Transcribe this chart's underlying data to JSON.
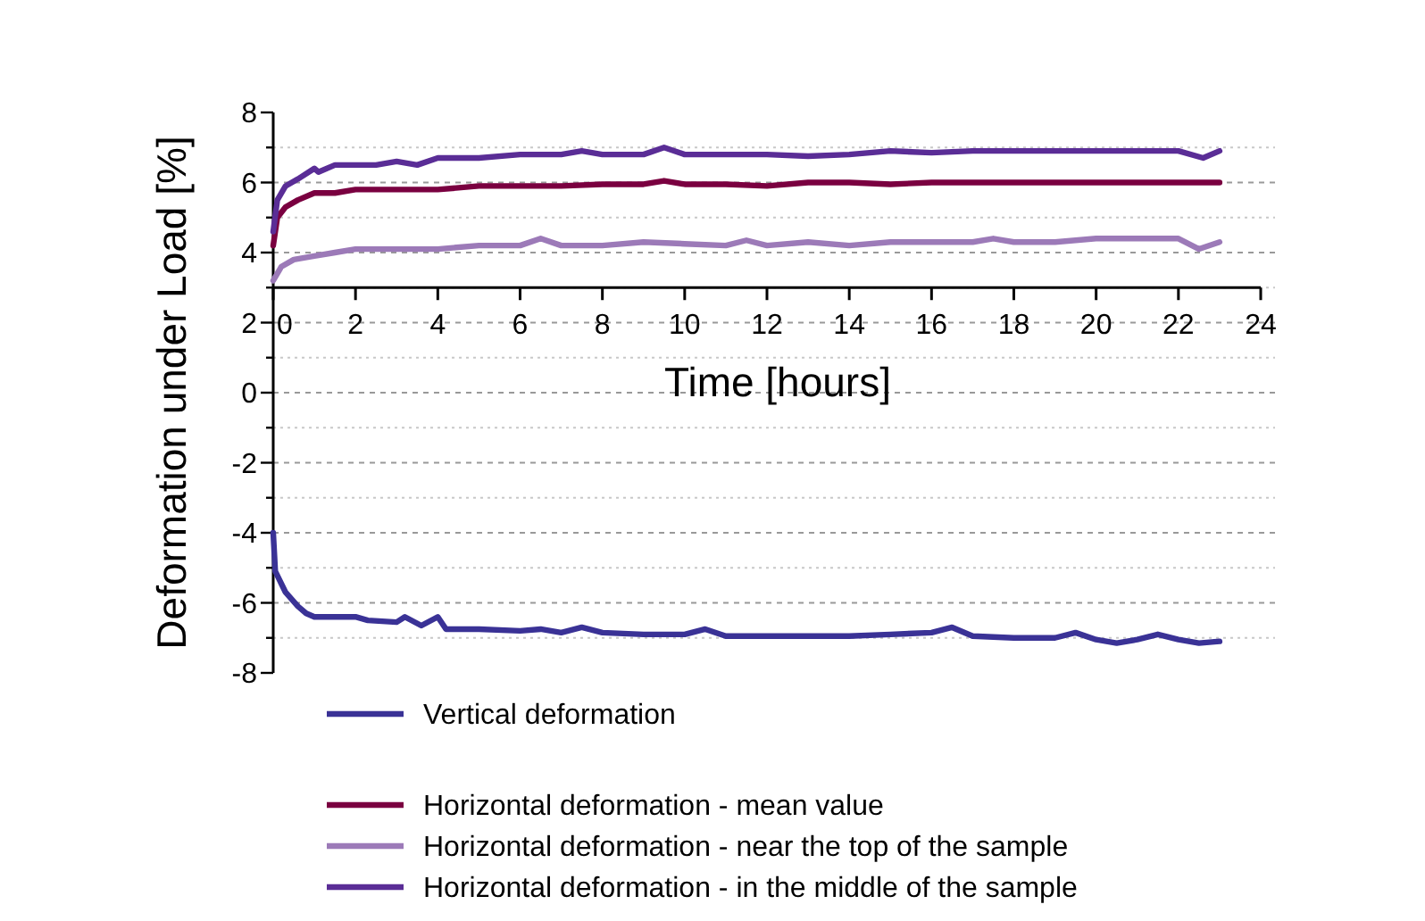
{
  "chart_data": {
    "type": "line",
    "xlabel": "Time [hours]",
    "ylabel": "Deformation under Load [%]",
    "xlim": [
      0,
      24
    ],
    "xticks": [
      0,
      2,
      4,
      6,
      8,
      10,
      12,
      14,
      16,
      18,
      20,
      22,
      24
    ],
    "ylim": [
      -8,
      8
    ],
    "yticks": [
      -8,
      {
        "value": -7,
        "label": null
      },
      -6,
      {
        "value": -5,
        "label": null
      },
      -4,
      {
        "value": -3,
        "label": null
      },
      -2,
      {
        "value": -1,
        "label": null
      },
      0,
      {
        "value": 1,
        "label": null
      },
      2,
      {
        "value": 3,
        "label": null
      },
      4,
      {
        "value": 5,
        "label": null
      },
      6,
      {
        "value": 7,
        "label": null
      },
      8
    ],
    "grid": "y",
    "legend": "bottom",
    "marker": "none",
    "line_style": "solid",
    "series": [
      {
        "name": "Vertical deformation",
        "color": "#3a3296",
        "x": [
          0,
          0.05,
          0.3,
          0.6,
          0.8,
          1,
          1.5,
          2,
          2.3,
          3,
          3.2,
          3.6,
          4,
          4.2,
          5,
          6,
          6.5,
          7,
          7.5,
          8,
          9,
          10,
          10.5,
          11,
          12,
          14,
          15,
          16,
          16.5,
          17,
          18,
          19,
          19.5,
          20,
          20.5,
          21,
          21.5,
          22,
          22.5,
          23
        ],
        "values": [
          -4.0,
          -5.1,
          -5.7,
          -6.1,
          -6.3,
          -6.4,
          -6.4,
          -6.4,
          -6.5,
          -6.55,
          -6.4,
          -6.65,
          -6.4,
          -6.75,
          -6.75,
          -6.8,
          -6.75,
          -6.85,
          -6.7,
          -6.85,
          -6.9,
          -6.9,
          -6.75,
          -6.95,
          -6.95,
          -6.95,
          -6.9,
          -6.85,
          -6.7,
          -6.95,
          -7.0,
          -7.0,
          -6.85,
          -7.05,
          -7.15,
          -7.05,
          -6.9,
          -7.05,
          -7.15,
          -7.1
        ]
      },
      {
        "name": "Horizontal deformation - mean value",
        "color": "#7a0040",
        "x": [
          0,
          0.1,
          0.3,
          0.6,
          1,
          1.5,
          2,
          3,
          4,
          5,
          6,
          7,
          8,
          9,
          9.5,
          10,
          11,
          12,
          13,
          14,
          15,
          16,
          17,
          18,
          19,
          20,
          21,
          22,
          23
        ],
        "values": [
          4.2,
          5.0,
          5.3,
          5.5,
          5.7,
          5.7,
          5.8,
          5.8,
          5.8,
          5.9,
          5.9,
          5.9,
          5.95,
          5.95,
          6.05,
          5.95,
          5.95,
          5.9,
          6.0,
          6.0,
          5.95,
          6.0,
          6.0,
          6.0,
          6.0,
          6.0,
          6.0,
          6.0,
          6.0
        ]
      },
      {
        "name": "Horizontal deformation - near the top of the sample",
        "color": "#9c7ab8",
        "x": [
          0,
          0.2,
          0.5,
          1,
          1.5,
          2,
          3,
          4,
          5,
          6,
          6.5,
          7,
          8,
          9,
          10,
          11,
          11.5,
          12,
          13,
          14,
          15,
          16,
          17,
          17.5,
          18,
          19,
          20,
          21,
          22,
          22.5,
          23
        ],
        "values": [
          3.2,
          3.6,
          3.8,
          3.9,
          4.0,
          4.1,
          4.1,
          4.1,
          4.2,
          4.2,
          4.4,
          4.2,
          4.2,
          4.3,
          4.25,
          4.2,
          4.35,
          4.2,
          4.3,
          4.2,
          4.3,
          4.3,
          4.3,
          4.4,
          4.3,
          4.3,
          4.4,
          4.4,
          4.4,
          4.1,
          4.3
        ]
      },
      {
        "name": "Horizontal deformation - in the middle of the sample",
        "color": "#5a2d96",
        "x": [
          0,
          0.1,
          0.3,
          0.6,
          1,
          1.1,
          1.5,
          2,
          2.5,
          3,
          3.5,
          4,
          5,
          6,
          7,
          7.5,
          8,
          9,
          9.5,
          10,
          11,
          12,
          13,
          14,
          15,
          16,
          17,
          18,
          19,
          20,
          21,
          22,
          22.6,
          23
        ],
        "values": [
          4.6,
          5.5,
          5.9,
          6.1,
          6.4,
          6.3,
          6.5,
          6.5,
          6.5,
          6.6,
          6.5,
          6.7,
          6.7,
          6.8,
          6.8,
          6.9,
          6.8,
          6.8,
          7.0,
          6.8,
          6.8,
          6.8,
          6.75,
          6.8,
          6.9,
          6.85,
          6.9,
          6.9,
          6.9,
          6.9,
          6.9,
          6.9,
          6.7,
          6.9
        ]
      }
    ]
  }
}
